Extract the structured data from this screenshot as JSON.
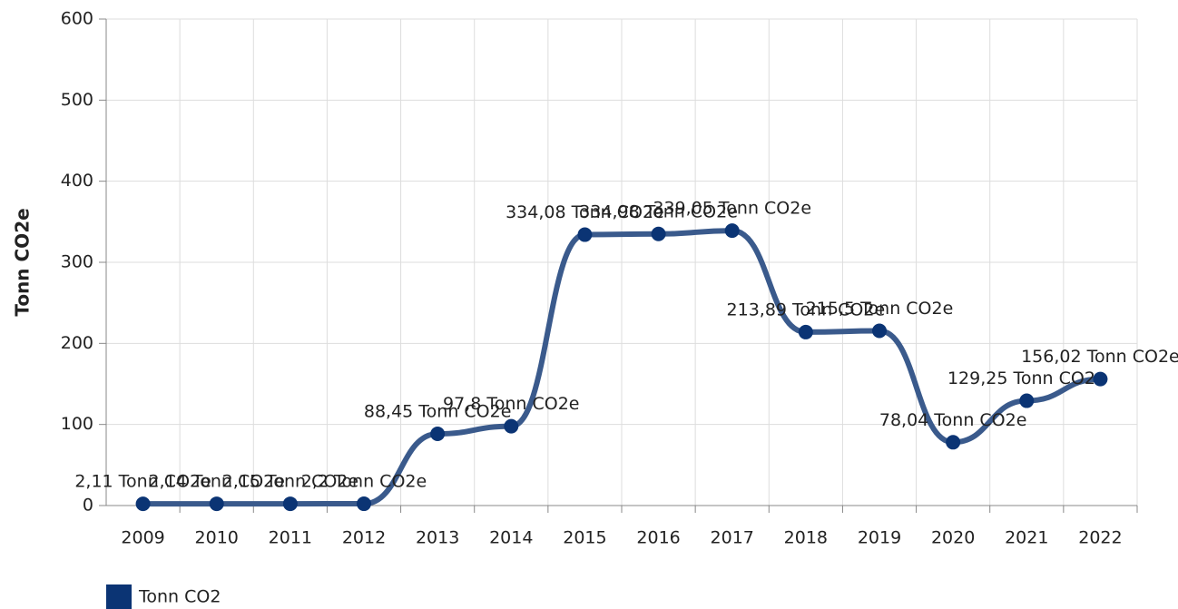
{
  "chart_data": {
    "type": "line",
    "y_axis_label": "Tonn CO2e",
    "categories": [
      "2009",
      "2010",
      "2011",
      "2012",
      "2013",
      "2014",
      "2015",
      "2016",
      "2017",
      "2018",
      "2019",
      "2020",
      "2021",
      "2022"
    ],
    "series": [
      {
        "name": "Tonn CO2",
        "color": "#3a5a8c",
        "marker_color": "#0b3474",
        "values": [
          2.11,
          2.14,
          2.15,
          2.2,
          88.45,
          97.8,
          334.08,
          334.98,
          339.05,
          213.89,
          215.5,
          78.04,
          129.25,
          156.02
        ],
        "value_labels": [
          "2,11 Tonn CO2e",
          "2,14 Tonn CO2e",
          "2,15 Tonn CO2e",
          "2,2 Tonn CO2e",
          "88,45 Tonn CO2e",
          "97,8 Tonn CO2e",
          "334,08 Tonn CO2e",
          "334,98 Tonn CO2e",
          "339,05 Tonn CO2e",
          "213,89 Tonn CO2e",
          "215,5 Tonn CO2e",
          "78,04 Tonn CO2e",
          "129,25 Tonn CO2e",
          "156,02 Tonn CO2e"
        ]
      }
    ],
    "ylim": [
      0,
      600
    ],
    "yticks": [
      0,
      100,
      200,
      300,
      400,
      500,
      600
    ],
    "grid": true
  }
}
